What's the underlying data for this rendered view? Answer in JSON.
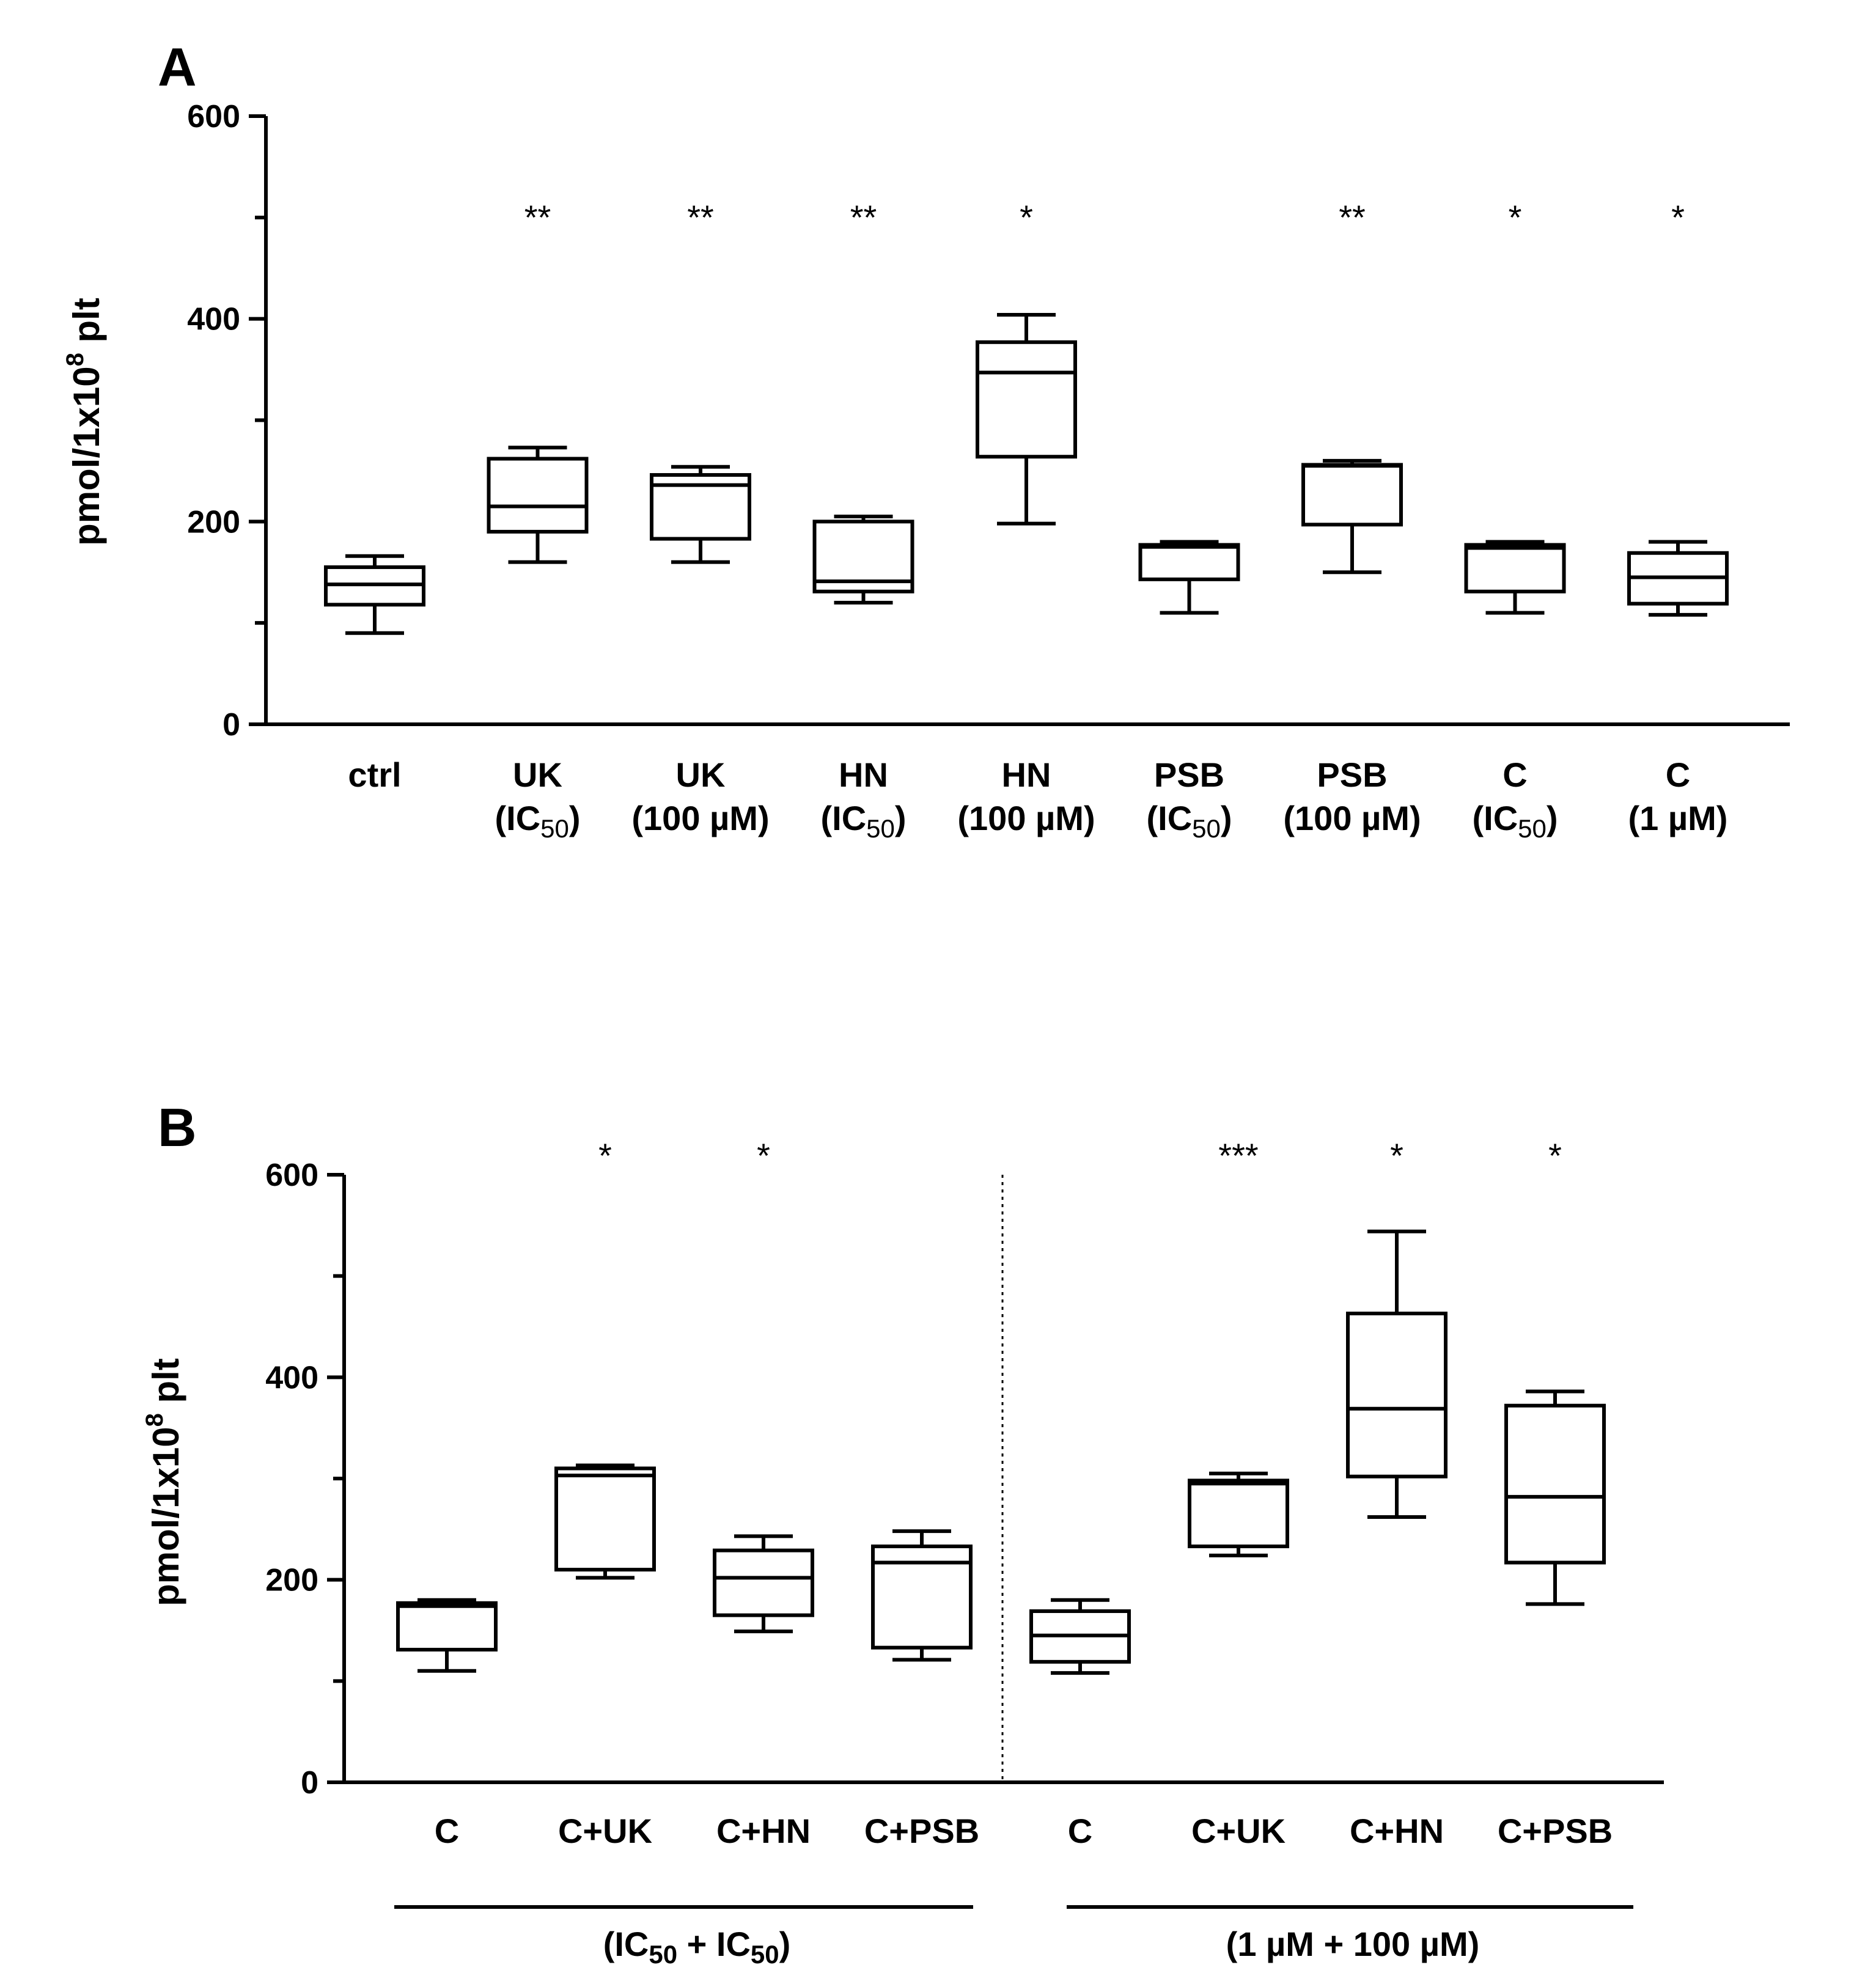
{
  "chart_data": [
    {
      "type": "box",
      "panel": "A",
      "ylabel": {
        "base": "pmol/1x10",
        "sup": "8",
        "suffix": " plt"
      },
      "ylim": [
        0,
        600
      ],
      "yticks": [
        0,
        200,
        400,
        600
      ],
      "yticks_minor": [
        100,
        300,
        500
      ],
      "groups": [
        {
          "l1": "ctrl",
          "l2": "",
          "sig": "",
          "min": 90,
          "q1": 118,
          "median": 138,
          "q3": 155,
          "max": 166
        },
        {
          "l1": "UK",
          "l2": "IC50",
          "sig": "**",
          "min": 160,
          "q1": 190,
          "median": 215,
          "q3": 262,
          "max": 273
        },
        {
          "l1": "UK",
          "l2": "(100 µM)",
          "sig": "**",
          "min": 160,
          "q1": 183,
          "median": 236,
          "q3": 246,
          "max": 254
        },
        {
          "l1": "HN",
          "l2": "IC50",
          "sig": "**",
          "min": 120,
          "q1": 131,
          "median": 141,
          "q3": 200,
          "max": 205
        },
        {
          "l1": "HN",
          "l2": "(100 µM)",
          "sig": "*",
          "min": 198,
          "q1": 264,
          "median": 347,
          "q3": 377,
          "max": 404
        },
        {
          "l1": "PSB",
          "l2": "IC50",
          "sig": "",
          "min": 110,
          "q1": 143,
          "median": 175,
          "q3": 177,
          "max": 180
        },
        {
          "l1": "PSB",
          "l2": "(100 µM)",
          "sig": "**",
          "min": 150,
          "q1": 197,
          "median": 255,
          "q3": 256,
          "max": 260
        },
        {
          "l1": "C",
          "l2": "IC50",
          "sig": "*",
          "min": 110,
          "q1": 131,
          "median": 174,
          "q3": 177,
          "max": 180
        },
        {
          "l1": "C",
          "l2": "(1 µM)",
          "sig": "*",
          "min": 108,
          "q1": 119,
          "median": 145,
          "q3": 169,
          "max": 180
        }
      ]
    },
    {
      "type": "box",
      "panel": "B",
      "ylabel": {
        "base": "pmol/1x10",
        "sup": "8",
        "suffix": " plt"
      },
      "ylim": [
        0,
        600
      ],
      "yticks": [
        0,
        200,
        400,
        600
      ],
      "yticks_minor": [
        100,
        300,
        500
      ],
      "groups": [
        {
          "l1": "C",
          "sig": "",
          "min": 110,
          "q1": 131,
          "median": 174,
          "q3": 177,
          "max": 180
        },
        {
          "l1": "C+UK",
          "sig": "*",
          "min": 202,
          "q1": 210,
          "median": 303,
          "q3": 310,
          "max": 313
        },
        {
          "l1": "C+HN",
          "sig": "*",
          "min": 149,
          "q1": 165,
          "median": 202,
          "q3": 229,
          "max": 243
        },
        {
          "l1": "C+PSB",
          "sig": "",
          "min": 121,
          "q1": 133,
          "median": 217,
          "q3": 233,
          "max": 248
        },
        {
          "l1": "C",
          "sig": "",
          "min": 108,
          "q1": 119,
          "median": 145,
          "q3": 169,
          "max": 180
        },
        {
          "l1": "C+UK",
          "sig": "***",
          "min": 224,
          "q1": 233,
          "median": 295,
          "q3": 298,
          "max": 305
        },
        {
          "l1": "C+HN",
          "sig": "*",
          "min": 262,
          "q1": 302,
          "median": 369,
          "q3": 463,
          "max": 544
        },
        {
          "l1": "C+PSB",
          "sig": "*",
          "min": 176,
          "q1": 217,
          "median": 282,
          "q3": 372,
          "max": 386
        }
      ],
      "brackets": [
        {
          "label_parts": [
            "(IC",
            "50",
            " + IC",
            "50",
            ")"
          ]
        },
        {
          "label": "(1 µM + 100 µM)"
        }
      ]
    }
  ]
}
